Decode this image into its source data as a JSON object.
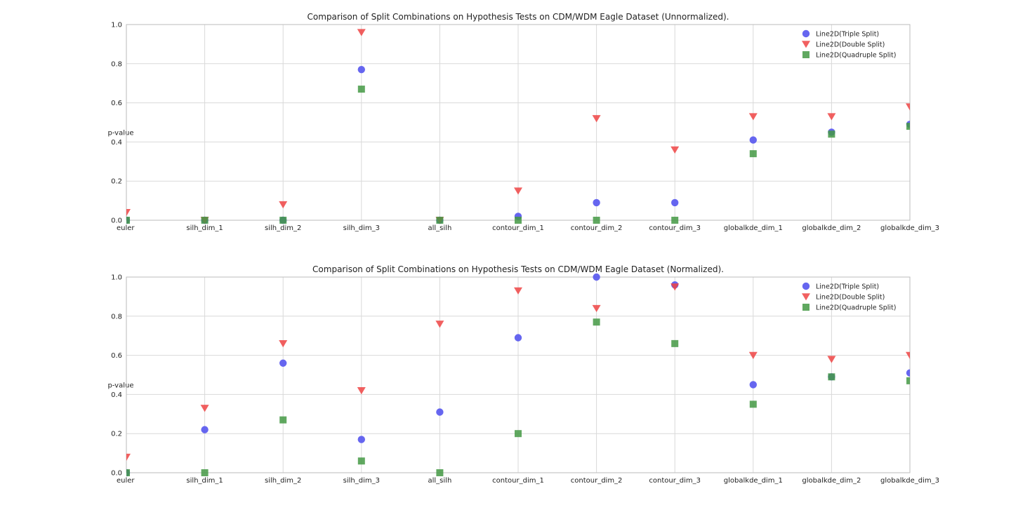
{
  "chart_data": [
    {
      "type": "scatter",
      "title": "Comparison of Split Combinations on Hypothesis Tests on CDM/WDM Eagle Dataset (Unnormalized).",
      "ylabel": "p-value",
      "xlabel": "",
      "ylim": [
        0,
        1
      ],
      "yticks": [
        "0.0",
        "0.2",
        "0.4",
        "0.6",
        "0.8",
        "1.0"
      ],
      "categories": [
        "euler",
        "silh_dim_1",
        "silh_dim_2",
        "silh_dim_3",
        "all_silh",
        "contour_dim_1",
        "contour_dim_2",
        "contour_dim_3",
        "globalkde_dim_1",
        "globalkde_dim_2",
        "globalkde_dim_3"
      ],
      "grid": true,
      "legend_position": "top-right",
      "series": [
        {
          "name": "Line2D(Triple Split)",
          "marker": "circle",
          "color": "#5555ee",
          "values": [
            0.0,
            0.0,
            0.0,
            0.77,
            0.0,
            0.02,
            0.09,
            0.09,
            0.41,
            0.45,
            0.49
          ]
        },
        {
          "name": "Line2D(Double Split)",
          "marker": "triangle-down",
          "color": "#ee4444",
          "values": [
            0.04,
            0.0,
            0.08,
            0.96,
            0.0,
            0.15,
            0.52,
            0.36,
            0.53,
            0.53,
            0.58
          ]
        },
        {
          "name": "Line2D(Quadruple Split)",
          "marker": "square",
          "color": "#449944",
          "values": [
            0.0,
            0.0,
            0.0,
            0.67,
            0.0,
            0.0,
            0.0,
            0.0,
            0.34,
            0.44,
            0.48
          ]
        }
      ]
    },
    {
      "type": "scatter",
      "title": "Comparison of Split Combinations on Hypothesis Tests on CDM/WDM Eagle Dataset (Normalized).",
      "ylabel": "p-value",
      "xlabel": "",
      "ylim": [
        0,
        1
      ],
      "yticks": [
        "0.0",
        "0.2",
        "0.4",
        "0.6",
        "0.8",
        "1.0"
      ],
      "categories": [
        "euler",
        "silh_dim_1",
        "silh_dim_2",
        "silh_dim_3",
        "all_silh",
        "contour_dim_1",
        "contour_dim_2",
        "contour_dim_3",
        "globalkde_dim_1",
        "globalkde_dim_2",
        "globalkde_dim_3"
      ],
      "grid": true,
      "legend_position": "top-right",
      "series": [
        {
          "name": "Line2D(Triple Split)",
          "marker": "circle",
          "color": "#5555ee",
          "values": [
            0.0,
            0.22,
            0.56,
            0.17,
            0.31,
            0.69,
            1.0,
            0.96,
            0.45,
            0.49,
            0.51
          ]
        },
        {
          "name": "Line2D(Double Split)",
          "marker": "triangle-down",
          "color": "#ee4444",
          "values": [
            0.08,
            0.33,
            0.66,
            0.42,
            0.76,
            0.93,
            0.84,
            0.95,
            0.6,
            0.58,
            0.6
          ]
        },
        {
          "name": "Line2D(Quadruple Split)",
          "marker": "square",
          "color": "#449944",
          "values": [
            0.0,
            0.0,
            0.27,
            0.06,
            0.0,
            0.2,
            0.77,
            0.66,
            0.35,
            0.49,
            0.47
          ]
        }
      ]
    }
  ]
}
